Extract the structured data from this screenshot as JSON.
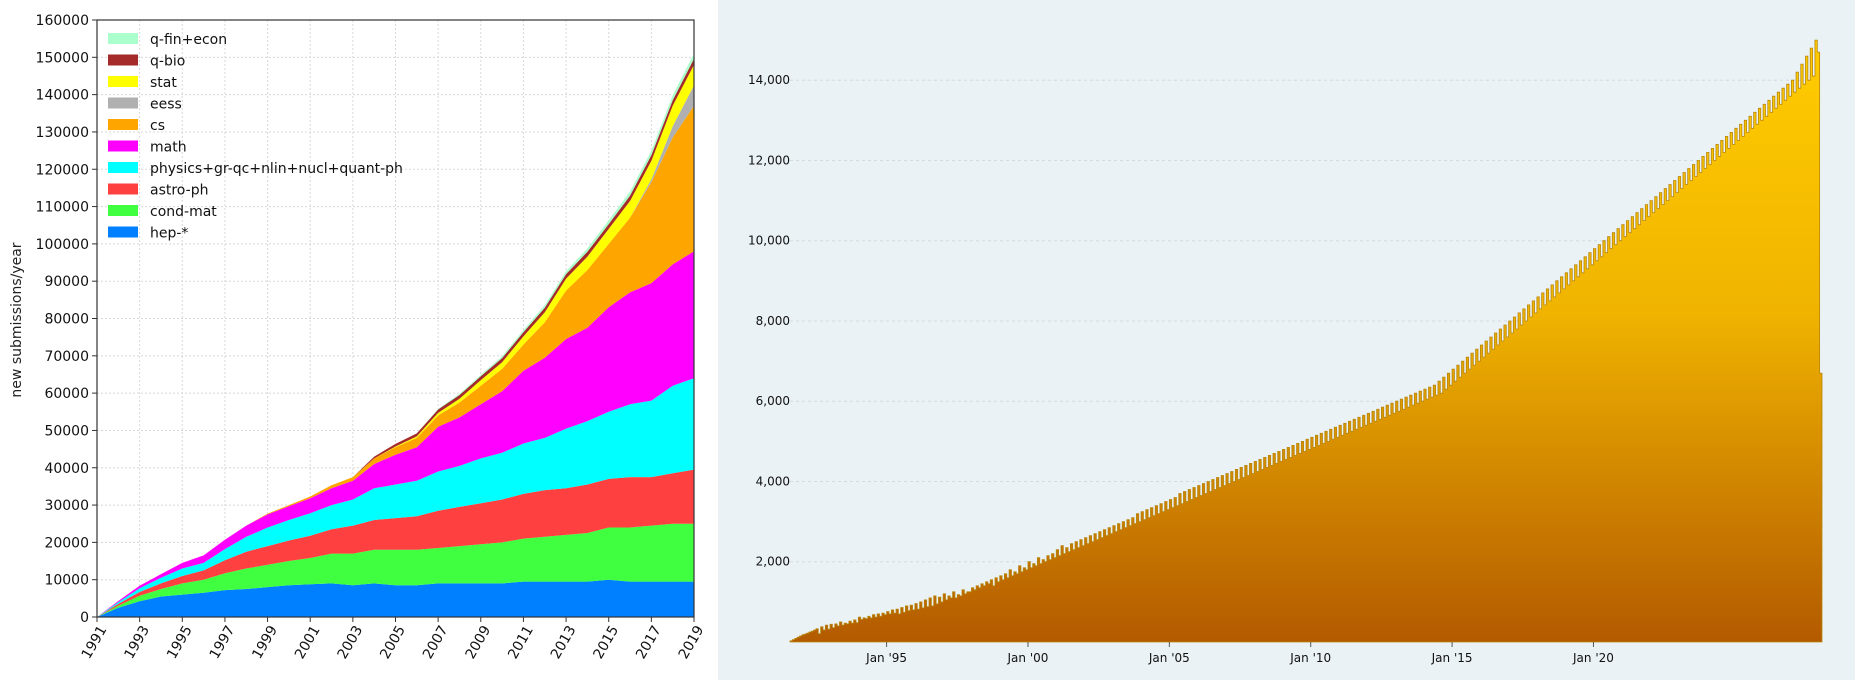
{
  "chart_data": [
    {
      "type": "area",
      "stacked": true,
      "ylabel": "new submissions/year",
      "xlabel": "",
      "ylim": [
        0,
        160000
      ],
      "xlim": [
        1991,
        2019
      ],
      "y_ticks": [
        "0",
        "10000",
        "20000",
        "30000",
        "40000",
        "50000",
        "60000",
        "70000",
        "80000",
        "90000",
        "100000",
        "110000",
        "120000",
        "130000",
        "140000",
        "150000",
        "160000"
      ],
      "x_ticks": [
        "1991",
        "1993",
        "1995",
        "1997",
        "1999",
        "2001",
        "2003",
        "2005",
        "2007",
        "2009",
        "2011",
        "2013",
        "2015",
        "2017",
        "2019"
      ],
      "grid": true,
      "legend_position": "top-left",
      "x": [
        1991,
        1992,
        1993,
        1994,
        1995,
        1996,
        1997,
        1998,
        1999,
        2000,
        2001,
        2002,
        2003,
        2004,
        2005,
        2006,
        2007,
        2008,
        2009,
        2010,
        2011,
        2012,
        2013,
        2014,
        2015,
        2016,
        2017,
        2018,
        2019
      ],
      "series": [
        {
          "name": "hep-*",
          "color": "#0080ff",
          "values": [
            0,
            2500,
            4200,
            5500,
            6000,
            6500,
            7200,
            7500,
            8000,
            8500,
            8800,
            9000,
            8500,
            9000,
            8500,
            8500,
            9000,
            9000,
            9000,
            9000,
            9500,
            9500,
            9500,
            9500,
            10000,
            9500,
            9500,
            9500,
            9500
          ]
        },
        {
          "name": "cond-mat",
          "color": "#40ff40",
          "values": [
            0,
            500,
            1500,
            2000,
            3000,
            3500,
            4500,
            5500,
            6000,
            6500,
            7000,
            8000,
            8500,
            9000,
            9500,
            9500,
            9500,
            10000,
            10500,
            11000,
            11500,
            12000,
            12500,
            13000,
            14000,
            14500,
            15000,
            15500,
            15500
          ]
        },
        {
          "name": "astro-ph",
          "color": "#ff4040",
          "values": [
            0,
            500,
            1000,
            1500,
            2000,
            2500,
            3500,
            4500,
            5000,
            5500,
            6000,
            6500,
            7500,
            8000,
            8500,
            9000,
            10000,
            10500,
            11000,
            11500,
            12000,
            12500,
            12500,
            13000,
            13000,
            13500,
            13000,
            13500,
            14500
          ]
        },
        {
          "name": "physics+gr-qc+nlin+nucl+quant-ph",
          "color": "#00ffff",
          "values": [
            0,
            500,
            1000,
            1500,
            2000,
            2000,
            3000,
            4000,
            5000,
            5500,
            6000,
            6500,
            7000,
            8500,
            9000,
            9500,
            10500,
            11000,
            12000,
            12500,
            13500,
            14000,
            16000,
            17000,
            18000,
            19500,
            20500,
            23500,
            24500
          ]
        },
        {
          "name": "math",
          "color": "#ff00ff",
          "values": [
            0,
            300,
            700,
            1000,
            1500,
            2000,
            2500,
            3000,
            3500,
            3700,
            4000,
            4500,
            5000,
            6500,
            8000,
            9000,
            12000,
            13000,
            14500,
            16500,
            19500,
            21500,
            24000,
            25000,
            28000,
            30000,
            31500,
            32500,
            34000
          ]
        },
        {
          "name": "cs",
          "color": "#ffa500",
          "values": [
            0,
            0,
            0,
            0,
            0,
            0,
            0,
            0,
            200,
            300,
            500,
            800,
            1000,
            1500,
            2000,
            2500,
            3000,
            4000,
            5000,
            6000,
            7000,
            9500,
            13000,
            15500,
            17000,
            20000,
            27000,
            34000,
            39000
          ]
        },
        {
          "name": "eess",
          "color": "#b0b0b0",
          "values": [
            0,
            0,
            0,
            0,
            0,
            0,
            0,
            0,
            0,
            0,
            0,
            0,
            0,
            0,
            0,
            0,
            0,
            0,
            0,
            0,
            0,
            0,
            0,
            0,
            0,
            0,
            800,
            3000,
            5500
          ]
        },
        {
          "name": "stat",
          "color": "#ffff00",
          "values": [
            0,
            0,
            0,
            0,
            0,
            0,
            0,
            0,
            0,
            0,
            0,
            0,
            0,
            0,
            200,
            400,
            700,
            1000,
            1500,
            1800,
            2200,
            2700,
            3200,
            3600,
            4000,
            4500,
            5000,
            5500,
            5500
          ]
        },
        {
          "name": "q-bio",
          "color": "#a52a2a",
          "values": [
            0,
            0,
            0,
            0,
            0,
            0,
            0,
            0,
            0,
            0,
            0,
            0,
            0,
            500,
            700,
            800,
            900,
            1000,
            1000,
            1100,
            1100,
            1200,
            1200,
            1300,
            1300,
            1400,
            1500,
            1500,
            1600
          ]
        },
        {
          "name": "q-fin+econ",
          "color": "#aaffcc",
          "values": [
            0,
            0,
            0,
            0,
            0,
            0,
            0,
            0,
            0,
            0,
            0,
            0,
            0,
            0,
            0,
            0,
            200,
            300,
            400,
            500,
            600,
            700,
            800,
            900,
            1000,
            1100,
            1200,
            1300,
            1400
          ]
        }
      ],
      "legend_order": [
        "q-fin+econ",
        "q-bio",
        "stat",
        "eess",
        "cs",
        "math",
        "physics+gr-qc+nlin+nucl+quant-ph",
        "astro-ph",
        "cond-mat",
        "hep-*"
      ]
    },
    {
      "type": "bar",
      "variant": "monthly histogram",
      "ylim": [
        0,
        15500
      ],
      "y_ticks": [
        "2,000",
        "4,000",
        "6,000",
        "8,000",
        "10,000",
        "12,000",
        "14,000"
      ],
      "x_ticks": [
        "Jan '95",
        "Jan '00",
        "Jan '05",
        "Jan '10",
        "Jan '15",
        "Jan '20"
      ],
      "grid": true,
      "fill_top_color": "#ffcc00",
      "fill_bottom_color": "#b35a00",
      "edge_color": "#b8860b",
      "x_start": "Aug 1991",
      "x_end": "Jan 2020",
      "values": [
        30,
        60,
        90,
        120,
        150,
        180,
        200,
        220,
        250,
        270,
        300,
        330,
        210,
        380,
        300,
        420,
        320,
        440,
        360,
        450,
        400,
        500,
        420,
        470,
        450,
        520,
        470,
        550,
        480,
        620,
        560,
        600,
        580,
        640,
        600,
        680,
        620,
        700,
        640,
        720,
        680,
        760,
        700,
        800,
        720,
        820,
        700,
        860,
        740,
        900,
        780,
        920,
        800,
        960,
        820,
        1000,
        850,
        1050,
        880,
        1100,
        900,
        1150,
        950,
        1120,
        1000,
        1200,
        1050,
        1150,
        1100,
        1250,
        1100,
        1180,
        1150,
        1300,
        1200,
        1250,
        1250,
        1350,
        1300,
        1400,
        1350,
        1450,
        1400,
        1500,
        1450,
        1550,
        1400,
        1600,
        1500,
        1650,
        1550,
        1700,
        1600,
        1800,
        1650,
        1750,
        1700,
        1900,
        1750,
        1850,
        1800,
        2000,
        1850,
        1950,
        1900,
        2100,
        1950,
        2050,
        2000,
        2150,
        2050,
        2200,
        2100,
        2300,
        2150,
        2400,
        2200,
        2350,
        2250,
        2450,
        2300,
        2500,
        2350,
        2550,
        2400,
        2600,
        2450,
        2650,
        2500,
        2700,
        2550,
        2750,
        2600,
        2800,
        2650,
        2850,
        2700,
        2900,
        2750,
        2950,
        2800,
        3000,
        2850,
        3050,
        2900,
        3100,
        2950,
        3200,
        3000,
        3250,
        3050,
        3300,
        3100,
        3350,
        3150,
        3400,
        3200,
        3450,
        3250,
        3500,
        3300,
        3550,
        3350,
        3600,
        3400,
        3700,
        3450,
        3750,
        3500,
        3800,
        3550,
        3850,
        3600,
        3900,
        3650,
        3950,
        3700,
        4000,
        3750,
        4050,
        3800,
        4100,
        3850,
        4150,
        3900,
        4200,
        3950,
        4250,
        4000,
        4300,
        4050,
        4350,
        4100,
        4400,
        4150,
        4450,
        4200,
        4500,
        4250,
        4550,
        4300,
        4600,
        4350,
        4650,
        4400,
        4700,
        4450,
        4750,
        4500,
        4800,
        4550,
        4850,
        4600,
        4900,
        4650,
        4950,
        4700,
        5000,
        4750,
        5050,
        4800,
        5100,
        4850,
        5150,
        4900,
        5200,
        4950,
        5250,
        5000,
        5300,
        5050,
        5350,
        5100,
        5400,
        5150,
        5450,
        5200,
        5500,
        5250,
        5550,
        5300,
        5600,
        5350,
        5650,
        5400,
        5700,
        5450,
        5750,
        5500,
        5800,
        5550,
        5850,
        5600,
        5900,
        5650,
        5950,
        5700,
        6000,
        5750,
        6050,
        5800,
        6100,
        5850,
        6150,
        5900,
        6200,
        5950,
        6250,
        6000,
        6300,
        6050,
        6350,
        6100,
        6400,
        6150,
        6500,
        6200,
        6600,
        6300,
        6700,
        6400,
        6800,
        6500,
        6900,
        6600,
        7000,
        6700,
        7100,
        6800,
        7200,
        6900,
        7300,
        7000,
        7400,
        7100,
        7500,
        7200,
        7600,
        7300,
        7700,
        7400,
        7800,
        7500,
        7900,
        7600,
        8000,
        7700,
        8100,
        7800,
        8200,
        7900,
        8300,
        8000,
        8400,
        8100,
        8500,
        8200,
        8600,
        8300,
        8700,
        8400,
        8800,
        8500,
        8900,
        8600,
        9000,
        8700,
        9100,
        8800,
        9200,
        8900,
        9300,
        9000,
        9400,
        9100,
        9500,
        9200,
        9600,
        9300,
        9700,
        9400,
        9800,
        9500,
        9900,
        9600,
        10000,
        9700,
        10100,
        9800,
        10200,
        9900,
        10300,
        10000,
        10400,
        10100,
        10500,
        10200,
        10600,
        10300,
        10700,
        10400,
        10800,
        10500,
        10900,
        10600,
        11000,
        10700,
        11100,
        10800,
        11200,
        10900,
        11300,
        11000,
        11400,
        11100,
        11500,
        11200,
        11600,
        11300,
        11700,
        11400,
        11800,
        11500,
        11900,
        11600,
        12000,
        11700,
        12100,
        11800,
        12200,
        11900,
        12300,
        12000,
        12400,
        12100,
        12500,
        12200,
        12600,
        12300,
        12700,
        12400,
        12800,
        12500,
        12900,
        12600,
        13000,
        12700,
        13100,
        12800,
        13200,
        12900,
        13300,
        13000,
        13400,
        13100,
        13500,
        13200,
        13600,
        13300,
        13700,
        13400,
        13800,
        13500,
        13900,
        13600,
        14000,
        13700,
        14200,
        13800,
        14400,
        13900,
        14600,
        14000,
        14800,
        14100,
        15000,
        14700,
        6700
      ]
    }
  ]
}
